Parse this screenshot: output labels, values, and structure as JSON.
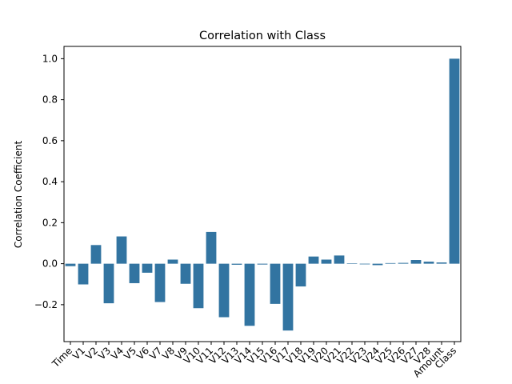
{
  "chart_data": {
    "type": "bar",
    "title": "Correlation with Class",
    "xlabel": "",
    "ylabel": "Correlation Coefficient",
    "ylim": [
      -0.38,
      1.06
    ],
    "yticks": [
      -0.2,
      0.0,
      0.2,
      0.4,
      0.6,
      0.8,
      1.0
    ],
    "ytick_labels": [
      "−0.2",
      "0.0",
      "0.2",
      "0.4",
      "0.6",
      "0.8",
      "1.0"
    ],
    "grid": false,
    "bar_color": "#3274a1",
    "categories": [
      "Time",
      "V1",
      "V2",
      "V3",
      "V4",
      "V5",
      "V6",
      "V7",
      "V8",
      "V9",
      "V10",
      "V11",
      "V12",
      "V13",
      "V14",
      "V15",
      "V16",
      "V17",
      "V18",
      "V19",
      "V20",
      "V21",
      "V22",
      "V23",
      "V24",
      "V25",
      "V26",
      "V27",
      "V28",
      "Amount",
      "Class"
    ],
    "values": [
      -0.012,
      -0.101,
      0.091,
      -0.193,
      0.133,
      -0.095,
      -0.044,
      -0.187,
      0.02,
      -0.098,
      -0.217,
      0.155,
      -0.261,
      -0.005,
      -0.303,
      -0.004,
      -0.196,
      -0.326,
      -0.111,
      0.035,
      0.02,
      0.04,
      0.001,
      -0.003,
      -0.007,
      0.003,
      0.004,
      0.018,
      0.01,
      0.006,
      1.0
    ]
  }
}
